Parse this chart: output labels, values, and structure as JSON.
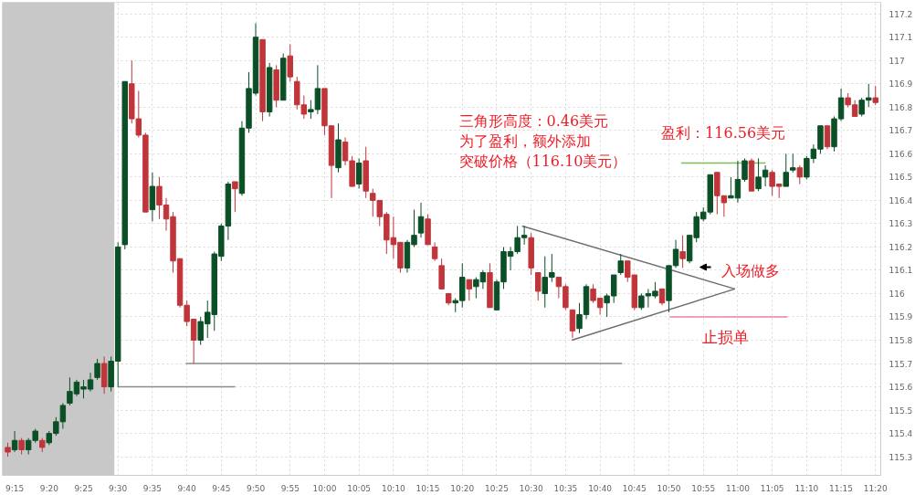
{
  "chart_data": {
    "type": "candlestick",
    "x": [
      9.2333,
      9.25,
      9.2667,
      9.2833,
      9.3,
      9.3167,
      9.3333,
      9.35,
      9.3667,
      9.3833,
      9.4,
      9.4167,
      9.4333,
      9.45,
      9.4667,
      9.4833,
      9.5,
      9.5167,
      9.5333,
      9.55,
      9.5667,
      9.5833,
      9.6,
      9.6167,
      9.6333,
      9.65,
      9.6667,
      9.6833,
      9.7,
      9.7167,
      9.7333,
      9.75,
      9.7667,
      9.7833,
      9.8,
      9.8167,
      9.8333,
      9.85,
      9.8667,
      9.8833,
      9.9,
      9.9167,
      9.9333,
      9.95,
      9.9667,
      9.9833,
      10,
      10.0167,
      10.0333,
      10.05,
      10.0667,
      10.0833,
      10.1,
      10.1167,
      10.1333,
      10.15,
      10.1667,
      10.1833,
      10.2,
      10.2167,
      10.2333,
      10.25,
      10.2667,
      10.2833,
      10.3,
      10.3167,
      10.3333,
      10.35,
      10.3667,
      10.3833,
      10.4,
      10.4167,
      10.4333,
      10.45,
      10.4667,
      10.4833,
      10.5,
      10.5167,
      10.5333,
      10.55,
      10.5667,
      10.5833,
      10.6,
      10.6167,
      10.6333,
      10.65,
      10.6667,
      10.6833,
      10.7,
      10.7167,
      10.7333,
      10.75,
      10.7667,
      10.7833,
      10.8,
      10.8167,
      10.8333,
      10.85,
      10.8667,
      10.8833,
      10.9,
      10.9167,
      10.9333,
      10.95,
      10.9667,
      10.9833,
      11,
      11.0167,
      11.0333,
      11.05,
      11.0667,
      11.0833,
      11.1,
      11.1167,
      11.1333,
      11.15,
      11.1667,
      11.1833,
      11.2,
      11.2167,
      11.2333,
      11.25,
      11.2667,
      11.2833,
      11.3,
      11.3167,
      11.3333
    ],
    "ohlc": [
      [
        115.34,
        115.36,
        115.3,
        115.32
      ],
      [
        115.33,
        115.41,
        115.32,
        115.37
      ],
      [
        115.37,
        115.38,
        115.31,
        115.33
      ],
      [
        115.33,
        115.38,
        115.31,
        115.37
      ],
      [
        115.37,
        115.42,
        115.36,
        115.41
      ],
      [
        115.37,
        115.38,
        115.32,
        115.34
      ],
      [
        115.36,
        115.41,
        115.35,
        115.4
      ],
      [
        115.4,
        115.47,
        115.39,
        115.45
      ],
      [
        115.45,
        115.53,
        115.42,
        115.52
      ],
      [
        115.53,
        115.64,
        115.52,
        115.58
      ],
      [
        115.57,
        115.63,
        115.56,
        115.62
      ],
      [
        115.59,
        115.63,
        115.55,
        115.6
      ],
      [
        115.59,
        115.66,
        115.58,
        115.63
      ],
      [
        115.64,
        115.72,
        115.63,
        115.7
      ],
      [
        115.7,
        115.73,
        115.57,
        115.6
      ],
      [
        115.6,
        115.73,
        115.58,
        115.71
      ],
      [
        115.71,
        116.22,
        115.6,
        116.2
      ],
      [
        116.21,
        116.91,
        116.19,
        116.91
      ],
      [
        116.9,
        117.0,
        116.73,
        116.75
      ],
      [
        116.75,
        116.87,
        116.67,
        116.68
      ],
      [
        116.68,
        116.69,
        116.35,
        116.35
      ],
      [
        116.36,
        116.52,
        116.31,
        116.46
      ],
      [
        116.46,
        116.5,
        116.32,
        116.38
      ],
      [
        116.38,
        116.41,
        116.27,
        116.32
      ],
      [
        116.33,
        116.35,
        116.09,
        116.14
      ],
      [
        116.15,
        116.15,
        115.94,
        115.95
      ],
      [
        115.95,
        115.97,
        115.86,
        115.88
      ],
      [
        115.89,
        115.89,
        115.7,
        115.8
      ],
      [
        115.8,
        115.9,
        115.78,
        115.88
      ],
      [
        115.87,
        115.97,
        115.81,
        115.92
      ],
      [
        115.91,
        116.18,
        115.84,
        116.17
      ],
      [
        116.16,
        116.3,
        116.14,
        116.29
      ],
      [
        116.29,
        116.48,
        116.23,
        116.47
      ],
      [
        116.48,
        116.48,
        116.35,
        116.45
      ],
      [
        116.43,
        116.74,
        116.42,
        116.71
      ],
      [
        116.71,
        116.95,
        116.69,
        116.88
      ],
      [
        116.86,
        117.16,
        116.85,
        117.1
      ],
      [
        117.09,
        117.09,
        116.74,
        116.78
      ],
      [
        116.78,
        116.99,
        116.76,
        116.97
      ],
      [
        116.96,
        116.98,
        116.8,
        116.83
      ],
      [
        116.83,
        117.03,
        116.83,
        117.01
      ],
      [
        117.02,
        117.07,
        116.91,
        116.93
      ],
      [
        116.91,
        116.93,
        116.79,
        116.81
      ],
      [
        116.81,
        116.85,
        116.75,
        116.77
      ],
      [
        116.78,
        116.83,
        116.75,
        116.79
      ],
      [
        116.79,
        116.98,
        116.77,
        116.88
      ],
      [
        116.88,
        116.88,
        116.68,
        116.72
      ],
      [
        116.72,
        116.72,
        116.41,
        116.55
      ],
      [
        116.54,
        116.73,
        116.52,
        116.66
      ],
      [
        116.65,
        116.67,
        116.55,
        116.57
      ],
      [
        116.57,
        116.59,
        116.46,
        116.46
      ],
      [
        116.47,
        116.58,
        116.45,
        116.56
      ],
      [
        116.57,
        116.63,
        116.41,
        116.44
      ],
      [
        116.43,
        116.45,
        116.33,
        116.4
      ],
      [
        116.4,
        116.4,
        116.29,
        116.33
      ],
      [
        116.34,
        116.35,
        116.17,
        116.23
      ],
      [
        116.24,
        116.33,
        116.15,
        116.21
      ],
      [
        116.22,
        116.22,
        116.09,
        116.11
      ],
      [
        116.11,
        116.23,
        116.09,
        116.22
      ],
      [
        116.21,
        116.36,
        116.2,
        116.25
      ],
      [
        116.26,
        116.39,
        116.24,
        116.33
      ],
      [
        116.32,
        116.34,
        116.21,
        116.21
      ],
      [
        116.2,
        116.22,
        116.14,
        116.15
      ],
      [
        116.12,
        116.15,
        116.02,
        116.02
      ],
      [
        116.0,
        116.0,
        115.95,
        115.96
      ],
      [
        115.96,
        115.98,
        115.92,
        115.97
      ],
      [
        115.97,
        116.13,
        115.94,
        116.07
      ],
      [
        116.06,
        116.06,
        115.97,
        116.02
      ],
      [
        116.03,
        116.07,
        115.98,
        116.06
      ],
      [
        116.05,
        116.1,
        116.02,
        116.09
      ],
      [
        116.09,
        116.13,
        115.94,
        115.94
      ],
      [
        115.93,
        116.06,
        115.93,
        116.05
      ],
      [
        116.05,
        116.2,
        116.02,
        116.18
      ],
      [
        116.16,
        116.2,
        116.1,
        116.18
      ],
      [
        116.18,
        116.29,
        116.17,
        116.24
      ],
      [
        116.24,
        116.29,
        116.21,
        116.25
      ],
      [
        116.24,
        116.26,
        116.08,
        116.11
      ],
      [
        116.09,
        116.09,
        115.97,
        116.01
      ],
      [
        116.0,
        116.16,
        115.94,
        116.07
      ],
      [
        116.07,
        116.17,
        116.05,
        116.09
      ],
      [
        116.07,
        116.07,
        115.98,
        116.03
      ],
      [
        116.03,
        116.04,
        115.93,
        115.94
      ],
      [
        115.93,
        115.93,
        115.81,
        115.84
      ],
      [
        115.85,
        115.96,
        115.83,
        115.91
      ],
      [
        115.91,
        116.04,
        115.89,
        116.03
      ],
      [
        116.02,
        116.04,
        115.96,
        115.97
      ],
      [
        115.98,
        115.98,
        115.91,
        115.94
      ],
      [
        115.96,
        116.0,
        115.9,
        115.99
      ],
      [
        115.99,
        116.08,
        115.96,
        116.08
      ],
      [
        116.09,
        116.17,
        116.08,
        116.14
      ],
      [
        116.14,
        116.14,
        116.05,
        116.07
      ],
      [
        116.08,
        116.08,
        115.93,
        115.94
      ],
      [
        115.94,
        116.0,
        115.93,
        115.99
      ],
      [
        115.99,
        116.02,
        115.94,
        116.0
      ],
      [
        115.99,
        116.05,
        115.98,
        116.01
      ],
      [
        116.02,
        116.02,
        115.95,
        115.96
      ],
      [
        115.97,
        116.12,
        115.92,
        116.12
      ],
      [
        116.12,
        116.23,
        116.11,
        116.19
      ],
      [
        116.18,
        116.25,
        116.11,
        116.15
      ],
      [
        116.14,
        116.25,
        116.13,
        116.25
      ],
      [
        116.24,
        116.35,
        116.22,
        116.33
      ],
      [
        116.32,
        116.37,
        116.31,
        116.35
      ],
      [
        116.35,
        116.51,
        116.34,
        116.51
      ],
      [
        116.52,
        116.52,
        116.34,
        116.42
      ],
      [
        116.42,
        116.42,
        116.33,
        116.39
      ],
      [
        116.41,
        116.5,
        116.41,
        116.42
      ],
      [
        116.41,
        116.57,
        116.39,
        116.49
      ],
      [
        116.49,
        116.58,
        116.48,
        116.57
      ],
      [
        116.57,
        116.58,
        116.44,
        116.44
      ],
      [
        116.45,
        116.58,
        116.44,
        116.5
      ],
      [
        116.5,
        116.55,
        116.46,
        116.53
      ],
      [
        116.52,
        116.53,
        116.42,
        116.46
      ],
      [
        116.47,
        116.47,
        116.41,
        116.46
      ],
      [
        116.46,
        116.6,
        116.46,
        116.52
      ],
      [
        116.53,
        116.6,
        116.52,
        116.54
      ],
      [
        116.54,
        116.55,
        116.47,
        116.5
      ],
      [
        116.5,
        116.59,
        116.49,
        116.58
      ],
      [
        116.58,
        116.64,
        116.56,
        116.62
      ],
      [
        116.62,
        116.72,
        116.6,
        116.72
      ],
      [
        116.72,
        116.72,
        116.62,
        116.63
      ],
      [
        116.63,
        116.76,
        116.61,
        116.75
      ],
      [
        116.75,
        116.88,
        116.74,
        116.84
      ],
      [
        116.84,
        116.86,
        116.8,
        116.81
      ],
      [
        116.81,
        116.83,
        116.76,
        116.76
      ],
      [
        116.77,
        116.84,
        116.76,
        116.83
      ],
      [
        116.83,
        116.9,
        116.8,
        116.84
      ],
      [
        116.84,
        116.89,
        116.81,
        116.82
      ]
    ],
    "series": [
      {
        "type": "line",
        "x": [
          9.5,
          9.7833
        ],
        "values": [
          115.6,
          115.6
        ],
        "color": "#8c8c8c"
      },
      {
        "type": "line",
        "x": [
          9.664,
          10.72
        ],
        "values": [
          115.7,
          115.7
        ],
        "color": "#8c8c8c"
      },
      {
        "type": "line",
        "x": [
          10.478,
          10.993
        ],
        "values": [
          116.29,
          116.02
        ],
        "color": "#6e6e6e"
      },
      {
        "type": "line",
        "x": [
          10.598,
          10.993
        ],
        "values": [
          115.8,
          116.02
        ],
        "color": "#6e6e6e"
      },
      {
        "type": "line",
        "x": [
          10.863,
          11.067
        ],
        "values": [
          116.56,
          116.56
        ],
        "color": "#7cbf5a"
      },
      {
        "type": "line",
        "x": [
          10.835,
          11.12
        ],
        "values": [
          115.9,
          115.9
        ],
        "color": "#ec86a0"
      }
    ],
    "bands": [
      {
        "axis": "x",
        "from": 9.22,
        "to": 9.4913,
        "color": "#c8c8c8"
      }
    ],
    "annotations": [
      "三角形高度：0.46美元",
      "为了盈利，额外添加",
      "突破价格（116.10美元）",
      "入场做多",
      {
        "text": "盈利：116.56美元",
        "x": 10.965,
        "y": 116.56
      },
      {
        "text": "止损单",
        "x": 10.97,
        "y": 115.9
      }
    ],
    "xlim": [
      9.22,
      11.346
    ],
    "ylim": [
      115.22,
      117.25
    ],
    "xticks": [
      {
        "value": 9.25,
        "label": "9:15"
      },
      {
        "value": 9.3333,
        "label": "9:20"
      },
      {
        "value": 9.4167,
        "label": "9:25"
      },
      {
        "value": 9.5,
        "label": "9:30"
      },
      {
        "value": 9.5833,
        "label": "9:35"
      },
      {
        "value": 9.6667,
        "label": "9:40"
      },
      {
        "value": 9.75,
        "label": "9:45"
      },
      {
        "value": 9.8333,
        "label": "9:50"
      },
      {
        "value": 9.9167,
        "label": "9:55"
      },
      {
        "value": 10,
        "label": "10:00"
      },
      {
        "value": 10.0833,
        "label": "10:05"
      },
      {
        "value": 10.1667,
        "label": "10:10"
      },
      {
        "value": 10.25,
        "label": "10:15"
      },
      {
        "value": 10.3333,
        "label": "10:20"
      },
      {
        "value": 10.4167,
        "label": "10:25"
      },
      {
        "value": 10.5,
        "label": "10:30"
      },
      {
        "value": 10.5833,
        "label": "10:35"
      },
      {
        "value": 10.6667,
        "label": "10:40"
      },
      {
        "value": 10.75,
        "label": "10:45"
      },
      {
        "value": 10.8333,
        "label": "10:50"
      },
      {
        "value": 10.9167,
        "label": "10:55"
      },
      {
        "value": 11,
        "label": "11:00"
      },
      {
        "value": 11.0833,
        "label": "11:05"
      },
      {
        "value": 11.1667,
        "label": "11:10"
      },
      {
        "value": 11.25,
        "label": "11:15"
      },
      {
        "value": 11.3333,
        "label": "11:20"
      }
    ],
    "yticks": [
      115.3,
      115.4,
      115.5,
      115.6,
      115.7,
      115.8,
      115.9,
      116,
      116.1,
      116.2,
      116.3,
      116.4,
      116.5,
      116.6,
      116.7,
      116.8,
      116.9,
      117,
      117.1,
      117.2
    ],
    "grid": true
  }
}
